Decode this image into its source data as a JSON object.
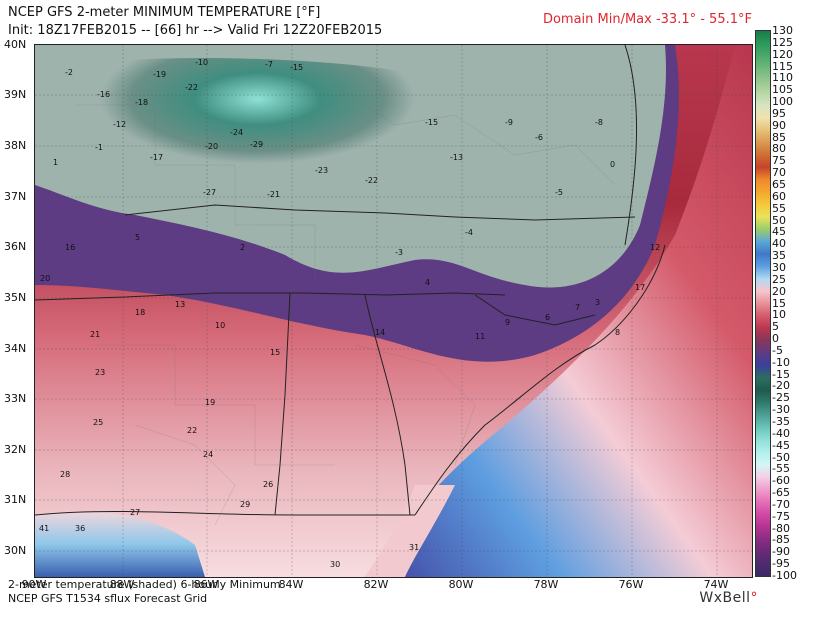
{
  "header": {
    "title": "NCEP GFS 2-meter MINIMUM TEMPERATURE [°F]",
    "init": "Init: 18Z17FEB2015 -- [66] hr --> Valid Fri 12Z20FEB2015",
    "minmax": "Domain Min/Max -33.1° - 55.1°F"
  },
  "lat_labels": [
    "40N",
    "39N",
    "38N",
    "37N",
    "36N",
    "35N",
    "34N",
    "33N",
    "32N",
    "31N",
    "30N"
  ],
  "lon_labels": [
    "90W",
    "88W",
    "86W",
    "84W",
    "82W",
    "80W",
    "78W",
    "76W",
    "74W"
  ],
  "colorbar": {
    "labels": [
      "130",
      "125",
      "120",
      "115",
      "110",
      "105",
      "100",
      "95",
      "90",
      "85",
      "80",
      "75",
      "70",
      "65",
      "60",
      "55",
      "50",
      "45",
      "40",
      "35",
      "30",
      "25",
      "20",
      "15",
      "10",
      "5",
      "0",
      "-5",
      "-10",
      "-15",
      "-20",
      "-25",
      "-30",
      "-35",
      "-40",
      "-45",
      "-50",
      "-55",
      "-60",
      "-65",
      "-70",
      "-75",
      "-80",
      "-85",
      "-90",
      "-95",
      "-100"
    ],
    "colors": [
      "#1a7a4a",
      "#2a9a5a",
      "#4aa869",
      "#6fb87a",
      "#94c78d",
      "#b7d6a6",
      "#d7e4c3",
      "#f0e2b0",
      "#e5c27a",
      "#d99950",
      "#cf6e35",
      "#c6432a",
      "#ef8a2a",
      "#f3a72f",
      "#f6c83a",
      "#e9e25a",
      "#9acd6a",
      "#5aa8d6",
      "#3f78c8",
      "#5d9ee0",
      "#b0d8f4",
      "#f7c6cc",
      "#e8909a",
      "#d45a6a",
      "#b8374e",
      "#86365c",
      "#5d3c83",
      "#3a3f9c",
      "#2c6e60",
      "#1f5a4c",
      "#2e7b6c",
      "#4e9f93",
      "#69c4b8",
      "#8fe0d6",
      "#b2f0ec",
      "#d2f6f6",
      "#f5d0e4",
      "#ee9fcc",
      "#e470b8",
      "#d04aa4",
      "#b53592",
      "#8c2c84",
      "#6a2a78",
      "#4e2b6f",
      "#3a2a66"
    ]
  },
  "map_values": [
    {
      "v": "-2"
    },
    {
      "v": "-16"
    },
    {
      "v": "-19"
    },
    {
      "v": "-12"
    },
    {
      "v": "-18"
    },
    {
      "v": "-17"
    },
    {
      "v": "-22"
    },
    {
      "v": "-15"
    },
    {
      "v": "-24"
    },
    {
      "v": "-29"
    },
    {
      "v": "-20"
    },
    {
      "v": "-27"
    },
    {
      "v": "-21"
    },
    {
      "v": "-22"
    },
    {
      "v": "-23"
    },
    {
      "v": "-10"
    },
    {
      "v": "-15"
    },
    {
      "v": "-13"
    },
    {
      "v": "-6"
    },
    {
      "v": "-8"
    },
    {
      "v": "-4"
    },
    {
      "v": "-3"
    },
    {
      "v": "-5"
    },
    {
      "v": "-7"
    },
    {
      "v": "-1"
    },
    {
      "v": "-9"
    },
    {
      "v": "1"
    },
    {
      "v": "2"
    },
    {
      "v": "5"
    },
    {
      "v": "4"
    },
    {
      "v": "3"
    },
    {
      "v": "12"
    },
    {
      "v": "16"
    },
    {
      "v": "17"
    },
    {
      "v": "20"
    },
    {
      "v": "13"
    },
    {
      "v": "18"
    },
    {
      "v": "15"
    },
    {
      "v": "21"
    },
    {
      "v": "14"
    },
    {
      "v": "10"
    },
    {
      "v": "11"
    },
    {
      "v": "9"
    },
    {
      "v": "6"
    },
    {
      "v": "7"
    },
    {
      "v": "8"
    },
    {
      "v": "23"
    },
    {
      "v": "19"
    },
    {
      "v": "25"
    },
    {
      "v": "22"
    },
    {
      "v": "24"
    },
    {
      "v": "28"
    },
    {
      "v": "26"
    },
    {
      "v": "27"
    },
    {
      "v": "29"
    },
    {
      "v": "30"
    },
    {
      "v": "31"
    },
    {
      "v": "36"
    },
    {
      "v": "41"
    },
    {
      "v": "0"
    }
  ],
  "footer": {
    "line1": "2-meter temperature (shaded)    6-hourly Minimum",
    "line2": "NCEP GFS T1534 sflux Forecast Grid",
    "brand": "WxBell"
  }
}
